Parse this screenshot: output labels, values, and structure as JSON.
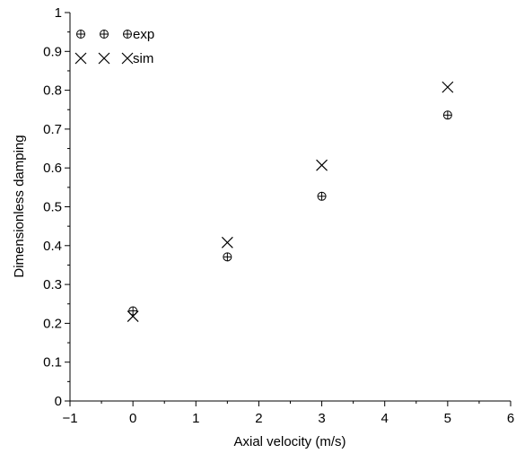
{
  "chart_data": {
    "type": "scatter",
    "xlabel": "Axial velocity (m/s)",
    "ylabel": "Dimensionless damping",
    "xlim": [
      -1,
      6
    ],
    "ylim": [
      0,
      1
    ],
    "xticks": [
      "−1",
      "0",
      "1",
      "2",
      "3",
      "4",
      "5",
      "6"
    ],
    "yticks": [
      "0",
      "0.1",
      "0.2",
      "0.3",
      "0.4",
      "0.5",
      "0.6",
      "0.7",
      "0.8",
      "0.9",
      "1"
    ],
    "grid": false,
    "legend_position": "top-left",
    "series": [
      {
        "name": "exp",
        "marker": "circle-plus",
        "color": "#000000",
        "x": [
          0,
          1.5,
          3,
          5
        ],
        "y": [
          0.232,
          0.371,
          0.527,
          0.736
        ]
      },
      {
        "name": "sim",
        "marker": "x",
        "color": "#000000",
        "x": [
          0,
          1.5,
          3,
          5
        ],
        "y": [
          0.218,
          0.408,
          0.607,
          0.808
        ]
      }
    ]
  }
}
